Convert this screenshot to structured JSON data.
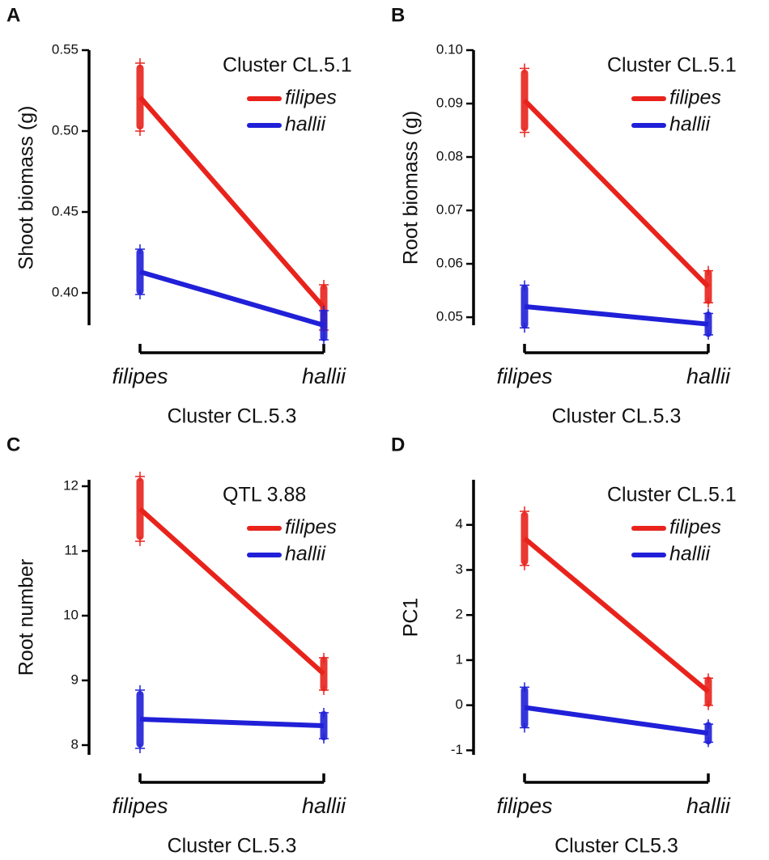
{
  "chart_data": [
    {
      "type": "line",
      "panel_label": "A",
      "legend_title": "Cluster CL.5.1",
      "ylabel": "Shoot biomass (g)",
      "xlabel": "Cluster CL.5.3",
      "categories": [
        "filipes",
        "hallii"
      ],
      "series": [
        {
          "name": "filipes",
          "color": "#e8231c",
          "values": [
            0.521,
            0.391
          ],
          "errors": [
            0.021,
            0.014
          ]
        },
        {
          "name": "hallii",
          "color": "#2020d8",
          "values": [
            0.413,
            0.38
          ],
          "errors": [
            0.014,
            0.009
          ]
        }
      ],
      "ylim": [
        0.38,
        0.55
      ],
      "yticks": [
        {
          "value": 0.4,
          "label": "0.40"
        },
        0.45,
        {
          "value": 0.5,
          "label": "0.50"
        },
        0.55
      ]
    },
    {
      "type": "line",
      "panel_label": "B",
      "legend_title": "Cluster CL.5.1",
      "ylabel": "Root biomass (g)",
      "xlabel": "Cluster CL.5.3",
      "categories": [
        "filipes",
        "hallii"
      ],
      "series": [
        {
          "name": "filipes",
          "color": "#e8231c",
          "values": [
            0.0906,
            0.0557
          ],
          "errors": [
            0.006,
            0.003
          ]
        },
        {
          "name": "hallii",
          "color": "#2020d8",
          "values": [
            0.052,
            0.0487
          ],
          "errors": [
            0.004,
            0.002
          ]
        }
      ],
      "ylim": [
        0.0485,
        0.1
      ],
      "yticks": [
        0.05,
        0.06,
        0.07,
        0.08,
        0.09,
        {
          "value": 0.1,
          "label": "0.10"
        }
      ]
    },
    {
      "type": "line",
      "panel_label": "C",
      "legend_title": "QTL 3.88",
      "ylabel": "Root number",
      "xlabel": "Cluster CL.5.3",
      "categories": [
        "filipes",
        "hallii"
      ],
      "series": [
        {
          "name": "filipes",
          "color": "#e8231c",
          "values": [
            11.65,
            9.1
          ],
          "errors": [
            0.5,
            0.25
          ]
        },
        {
          "name": "hallii",
          "color": "#2020d8",
          "values": [
            8.4,
            8.3
          ],
          "errors": [
            0.45,
            0.2
          ]
        }
      ],
      "ylim": [
        7.85,
        12.1
      ],
      "yticks": [
        8,
        9,
        10,
        11,
        12
      ]
    },
    {
      "type": "line",
      "panel_label": "D",
      "legend_title": "Cluster CL.5.1",
      "ylabel": "PC1",
      "xlabel": "Cluster CL5.3",
      "categories": [
        "filipes",
        "hallii"
      ],
      "series": [
        {
          "name": "filipes",
          "color": "#e8231c",
          "values": [
            3.7,
            0.3
          ],
          "errors": [
            0.6,
            0.3
          ]
        },
        {
          "name": "hallii",
          "color": "#2020d8",
          "values": [
            -0.05,
            -0.62
          ],
          "errors": [
            0.45,
            0.2
          ]
        }
      ],
      "ylim": [
        -1.1,
        5.0
      ],
      "yticks": [
        -1,
        0,
        1,
        2,
        3,
        4
      ]
    }
  ]
}
